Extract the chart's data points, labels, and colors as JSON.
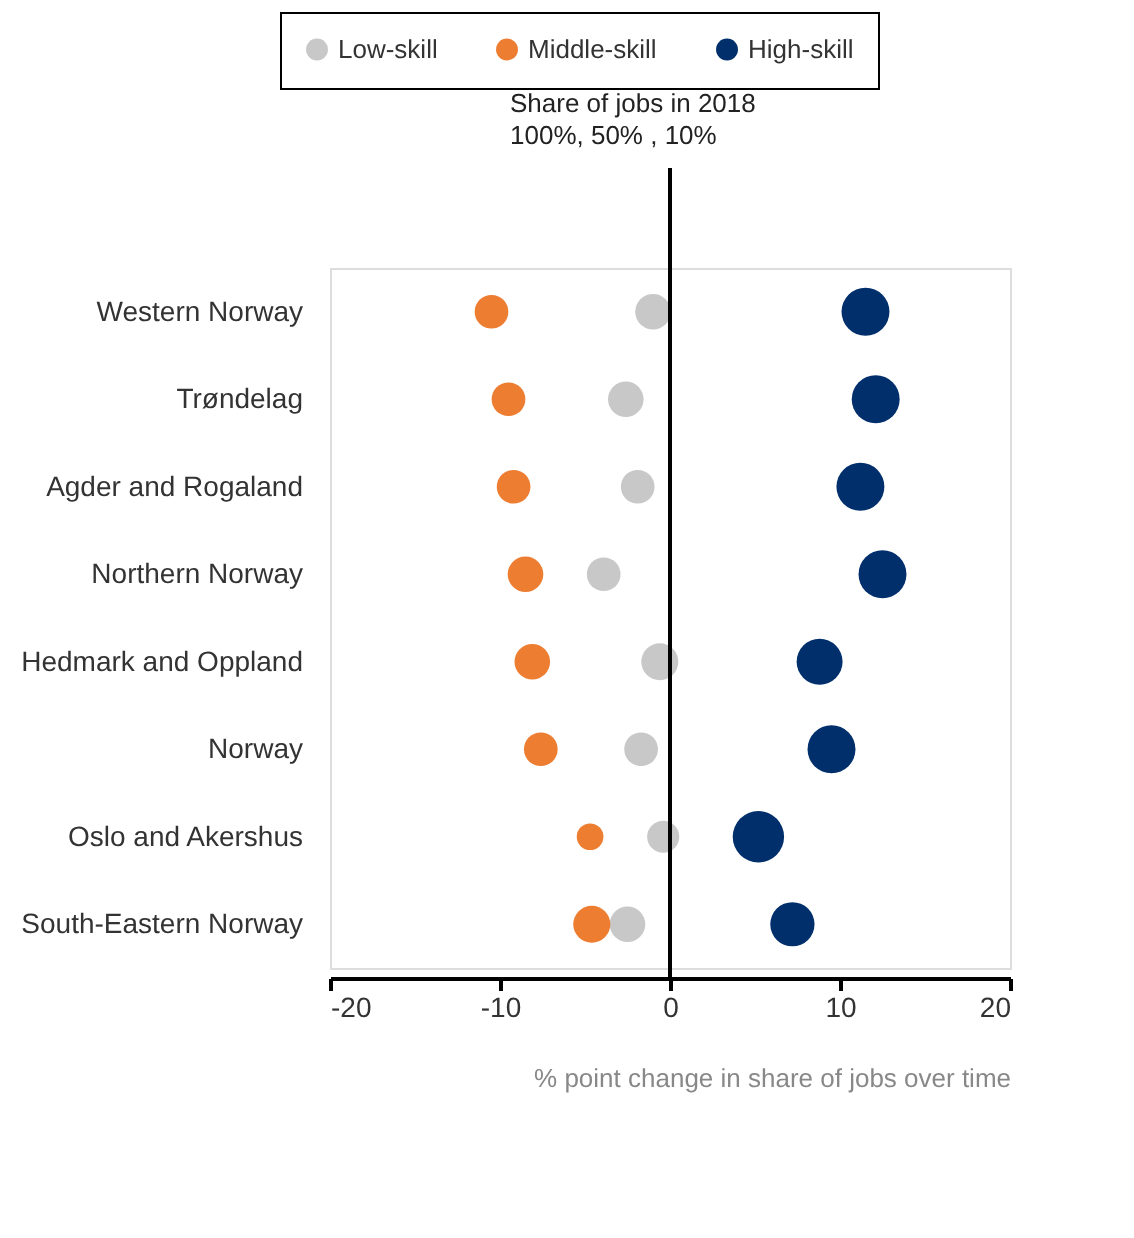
{
  "chart_data": {
    "type": "bubble",
    "orientation": "horizontal",
    "categories": [
      "Western Norway",
      "Trøndelag",
      "Agder and Rogaland",
      "Northern Norway",
      "Hedmark and Oppland",
      "Norway",
      "Oslo and Akershus",
      "South-Eastern Norway"
    ],
    "series": [
      {
        "name": "Low-skill",
        "color": "#c8c8c8",
        "values": [
          -1.0,
          -2.6,
          -1.9,
          -3.9,
          -0.6,
          -1.7,
          -0.4,
          -2.5
        ],
        "sizes": [
          0.48,
          0.48,
          0.43,
          0.43,
          0.52,
          0.43,
          0.39,
          0.48
        ]
      },
      {
        "name": "Middle-skill",
        "color": "#ed7d31",
        "values": [
          -10.5,
          -9.5,
          -9.2,
          -8.5,
          -8.1,
          -7.6,
          -4.7,
          -4.6
        ],
        "sizes": [
          0.43,
          0.43,
          0.43,
          0.48,
          0.48,
          0.43,
          0.27,
          0.52
        ]
      },
      {
        "name": "High-skill",
        "color": "#002f6c",
        "values": [
          11.5,
          12.1,
          11.2,
          12.5,
          8.8,
          9.5,
          5.2,
          7.2
        ],
        "sizes": [
          0.87,
          0.87,
          0.87,
          0.87,
          0.8,
          0.87,
          1.0,
          0.74
        ]
      }
    ],
    "xlabel": "% point change in share of jobs over time",
    "xlim": [
      -20,
      20
    ],
    "xticks": [
      -20,
      -10,
      0,
      10,
      20
    ],
    "ref_lines": [
      {
        "axis": "x",
        "value": 0,
        "color": "#000000"
      }
    ],
    "annotations": [
      "Share of jobs in 2018",
      "100%, 50% , 10%"
    ],
    "legend": "top",
    "grid": false
  }
}
